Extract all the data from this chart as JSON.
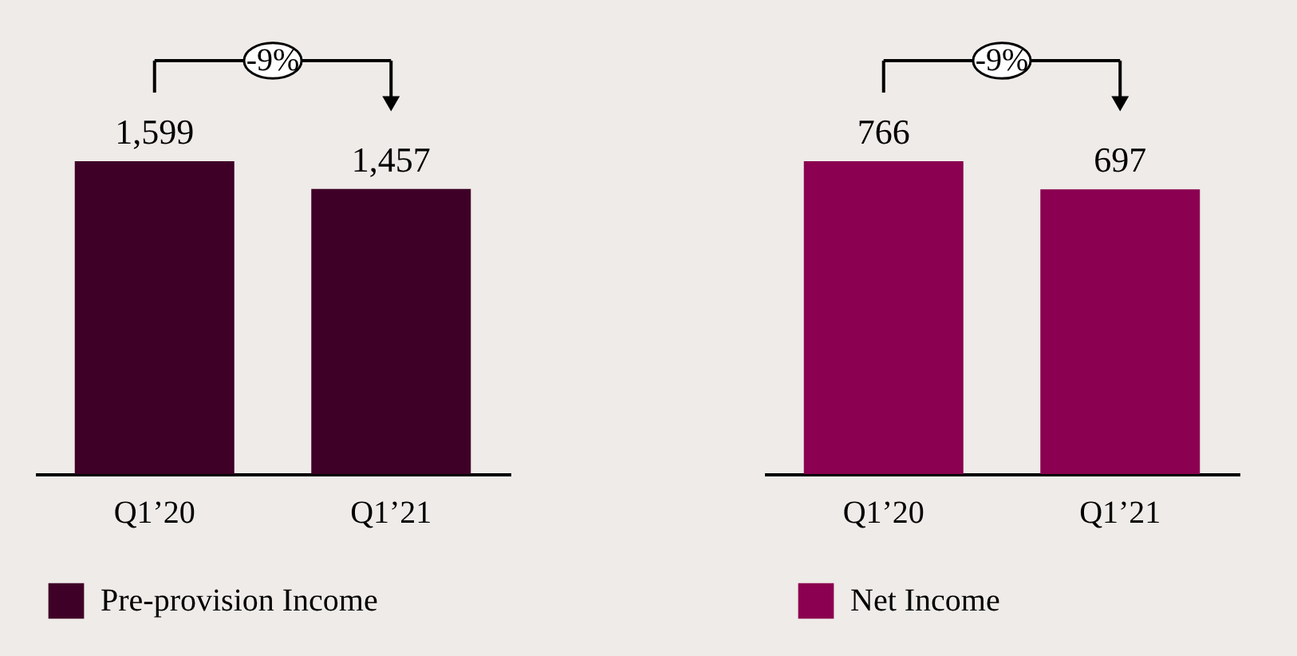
{
  "chart_data": [
    {
      "type": "bar",
      "categories": [
        "Q1’20",
        "Q1’21"
      ],
      "series": [
        {
          "name": "Pre-provision Income",
          "color": "#3f0027",
          "values": [
            1599,
            1457
          ],
          "value_labels": [
            "1,599",
            "1,457"
          ]
        }
      ],
      "legend": "bottom",
      "annotations": [
        "-9%"
      ]
    },
    {
      "type": "bar",
      "categories": [
        "Q1’20",
        "Q1’21"
      ],
      "series": [
        {
          "name": "Net Income",
          "color": "#8b0050",
          "values": [
            766,
            697
          ]
        }
      ],
      "data_labels": true,
      "legend": "bottom",
      "annotations": [
        "-9%"
      ]
    }
  ]
}
